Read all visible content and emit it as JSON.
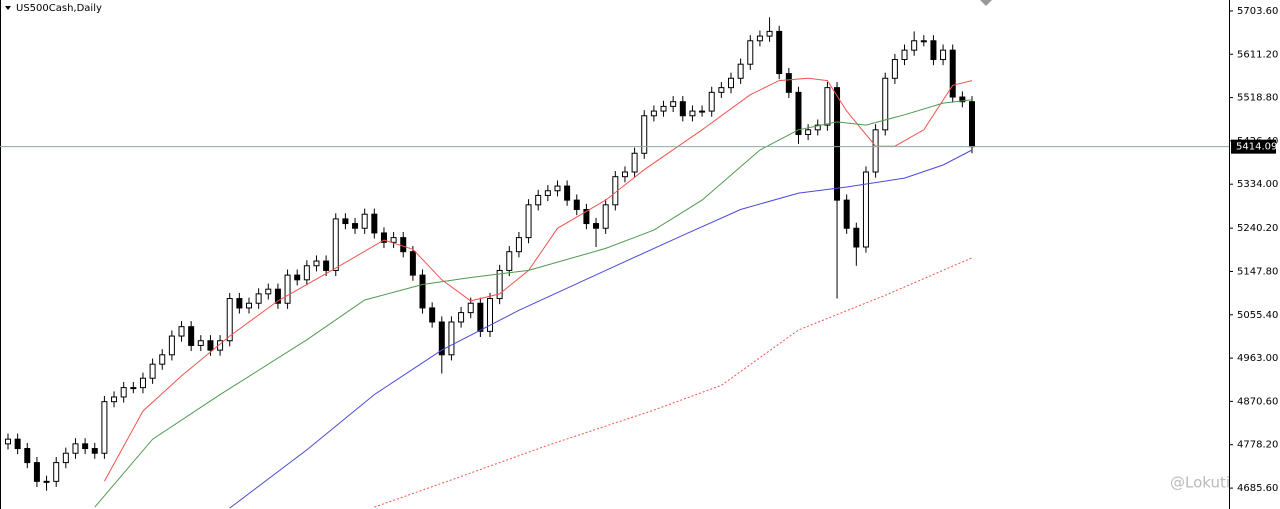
{
  "chart_data": {
    "type": "candlestick",
    "title": "US500Cash,Daily",
    "watermark": "@Lokuti",
    "up_color": "#ffffff",
    "down_color": "#000000",
    "price_line_color": "#8fa8a8",
    "ylim": [
      4641,
      5727
    ],
    "yticks": [
      {
        "value": 5703.6,
        "label": "5703.60"
      },
      {
        "value": 5611.2,
        "label": "5611.20"
      },
      {
        "value": 5518.8,
        "label": "5518.80"
      },
      {
        "value": 5426.4,
        "label": "5426.40"
      },
      {
        "value": 5334.0,
        "label": "5334.00"
      },
      {
        "value": 5240.2,
        "label": "5240.20"
      },
      {
        "value": 5147.8,
        "label": "5147.80"
      },
      {
        "value": 5055.4,
        "label": "5055.40"
      },
      {
        "value": 4963.0,
        "label": "4963.00"
      },
      {
        "value": 4870.6,
        "label": "4870.60"
      },
      {
        "value": 4778.2,
        "label": "4778.20"
      },
      {
        "value": 4685.6,
        "label": "4685.60"
      }
    ],
    "ohlc": [
      [
        4780,
        4802,
        4768,
        4790
      ],
      [
        4790,
        4802,
        4758,
        4770
      ],
      [
        4770,
        4782,
        4728,
        4740
      ],
      [
        4740,
        4752,
        4688,
        4700
      ],
      [
        4700,
        4712,
        4680,
        4700
      ],
      [
        4700,
        4752,
        4688,
        4740
      ],
      [
        4740,
        4772,
        4728,
        4760
      ],
      [
        4760,
        4792,
        4748,
        4780
      ],
      [
        4780,
        4792,
        4758,
        4770
      ],
      [
        4770,
        4782,
        4748,
        4760
      ],
      [
        4760,
        4882,
        4748,
        4870
      ],
      [
        4870,
        4892,
        4858,
        4880
      ],
      [
        4880,
        4912,
        4868,
        4900
      ],
      [
        4900,
        4912,
        4888,
        4900
      ],
      [
        4900,
        4932,
        4888,
        4920
      ],
      [
        4920,
        4962,
        4908,
        4950
      ],
      [
        4950,
        4982,
        4938,
        4970
      ],
      [
        4970,
        5022,
        4958,
        5010
      ],
      [
        5010,
        5042,
        4998,
        5030
      ],
      [
        5030,
        5042,
        4978,
        4990
      ],
      [
        4990,
        5012,
        4978,
        5000
      ],
      [
        5000,
        5012,
        4968,
        4980
      ],
      [
        4980,
        5012,
        4968,
        5000
      ],
      [
        5000,
        5102,
        4988,
        5090
      ],
      [
        5090,
        5102,
        5058,
        5070
      ],
      [
        5070,
        5092,
        5058,
        5080
      ],
      [
        5080,
        5112,
        5068,
        5100
      ],
      [
        5100,
        5122,
        5088,
        5110
      ],
      [
        5110,
        5122,
        5068,
        5080
      ],
      [
        5080,
        5152,
        5068,
        5140
      ],
      [
        5140,
        5152,
        5118,
        5130
      ],
      [
        5130,
        5172,
        5118,
        5160
      ],
      [
        5160,
        5182,
        5148,
        5170
      ],
      [
        5170,
        5182,
        5138,
        5150
      ],
      [
        5150,
        5272,
        5138,
        5260
      ],
      [
        5260,
        5272,
        5238,
        5250
      ],
      [
        5250,
        5262,
        5228,
        5240
      ],
      [
        5240,
        5282,
        5228,
        5270
      ],
      [
        5270,
        5282,
        5218,
        5230
      ],
      [
        5230,
        5242,
        5198,
        5210
      ],
      [
        5210,
        5232,
        5198,
        5220
      ],
      [
        5220,
        5232,
        5178,
        5190
      ],
      [
        5190,
        5202,
        5128,
        5140
      ],
      [
        5140,
        5152,
        5058,
        5070
      ],
      [
        5070,
        5082,
        5028,
        5040
      ],
      [
        5040,
        5052,
        4930,
        4970
      ],
      [
        4970,
        5052,
        4958,
        5040
      ],
      [
        5040,
        5072,
        5028,
        5060
      ],
      [
        5060,
        5092,
        5048,
        5080
      ],
      [
        5080,
        5092,
        5008,
        5020
      ],
      [
        5020,
        5102,
        5008,
        5090
      ],
      [
        5090,
        5162,
        5078,
        5150
      ],
      [
        5150,
        5202,
        5138,
        5190
      ],
      [
        5190,
        5232,
        5178,
        5220
      ],
      [
        5220,
        5302,
        5208,
        5290
      ],
      [
        5290,
        5322,
        5278,
        5310
      ],
      [
        5310,
        5332,
        5298,
        5320
      ],
      [
        5320,
        5342,
        5308,
        5330
      ],
      [
        5330,
        5342,
        5288,
        5300
      ],
      [
        5300,
        5312,
        5268,
        5280
      ],
      [
        5280,
        5292,
        5238,
        5250
      ],
      [
        5250,
        5262,
        5200,
        5240
      ],
      [
        5240,
        5302,
        5228,
        5290
      ],
      [
        5290,
        5362,
        5278,
        5350
      ],
      [
        5350,
        5372,
        5338,
        5360
      ],
      [
        5360,
        5412,
        5348,
        5400
      ],
      [
        5400,
        5492,
        5388,
        5480
      ],
      [
        5480,
        5502,
        5468,
        5490
      ],
      [
        5490,
        5512,
        5478,
        5500
      ],
      [
        5500,
        5522,
        5488,
        5510
      ],
      [
        5510,
        5522,
        5468,
        5480
      ],
      [
        5480,
        5502,
        5468,
        5490
      ],
      [
        5490,
        5502,
        5478,
        5490
      ],
      [
        5490,
        5542,
        5478,
        5530
      ],
      [
        5530,
        5552,
        5518,
        5540
      ],
      [
        5540,
        5572,
        5528,
        5560
      ],
      [
        5560,
        5602,
        5548,
        5590
      ],
      [
        5590,
        5652,
        5578,
        5640
      ],
      [
        5640,
        5662,
        5628,
        5650
      ],
      [
        5650,
        5690,
        5638,
        5660
      ],
      [
        5660,
        5672,
        5558,
        5570
      ],
      [
        5570,
        5582,
        5518,
        5530
      ],
      [
        5530,
        5542,
        5420,
        5440
      ],
      [
        5440,
        5462,
        5428,
        5450
      ],
      [
        5450,
        5472,
        5438,
        5460
      ],
      [
        5460,
        5552,
        5448,
        5540
      ],
      [
        5540,
        5552,
        5090,
        5300
      ],
      [
        5300,
        5312,
        5228,
        5240
      ],
      [
        5240,
        5252,
        5160,
        5200
      ],
      [
        5200,
        5372,
        5188,
        5360
      ],
      [
        5360,
        5462,
        5348,
        5450
      ],
      [
        5450,
        5572,
        5438,
        5560
      ],
      [
        5560,
        5612,
        5548,
        5600
      ],
      [
        5600,
        5632,
        5588,
        5620
      ],
      [
        5620,
        5660,
        5608,
        5640
      ],
      [
        5640,
        5652,
        5628,
        5640
      ],
      [
        5640,
        5652,
        5588,
        5600
      ],
      [
        5600,
        5632,
        5588,
        5620
      ],
      [
        5620,
        5632,
        5508,
        5520
      ],
      [
        5520,
        5532,
        5498,
        5510
      ],
      [
        5510,
        5522,
        5400,
        5414.09
      ]
    ],
    "series": [
      {
        "color": "#f0544f",
        "dash": false,
        "x": [
          10,
          14,
          18,
          23,
          28,
          34,
          39,
          42,
          45,
          48,
          51,
          54,
          57,
          62,
          66,
          72,
          77,
          80,
          83,
          85,
          87,
          90,
          92,
          95,
          98,
          100
        ],
        "values": [
          4700,
          4850,
          4925,
          5010,
          5085,
          5155,
          5215,
          5195,
          5130,
          5085,
          5100,
          5150,
          5240,
          5300,
          5365,
          5450,
          5525,
          5555,
          5560,
          5555,
          5490,
          5415,
          5415,
          5450,
          5545,
          5555
        ]
      },
      {
        "color": "#4f9a4f",
        "dash": false,
        "x": [
          9,
          15,
          22,
          31,
          37,
          43,
          48,
          54,
          62,
          67,
          72,
          78,
          82,
          86,
          89,
          93,
          97,
          100
        ],
        "values": [
          4645,
          4790,
          4885,
          5002,
          5087,
          5120,
          5135,
          5150,
          5197,
          5236,
          5300,
          5407,
          5450,
          5467,
          5460,
          5482,
          5507,
          5514
        ]
      },
      {
        "color": "#4a4ad8",
        "dash": false,
        "x": [
          23,
          31,
          38,
          45,
          53,
          62,
          70,
          76,
          82,
          87,
          93,
          97,
          100
        ],
        "values": [
          4643,
          4767,
          4885,
          4980,
          5065,
          5150,
          5225,
          5280,
          5315,
          5328,
          5347,
          5375,
          5407
        ]
      },
      {
        "color": "#f0544f",
        "dash": true,
        "x": [
          38,
          46,
          56,
          67,
          74,
          82,
          91,
          100
        ],
        "values": [
          4645,
          4703,
          4777,
          4852,
          4905,
          5023,
          5097,
          5177
        ]
      }
    ]
  }
}
